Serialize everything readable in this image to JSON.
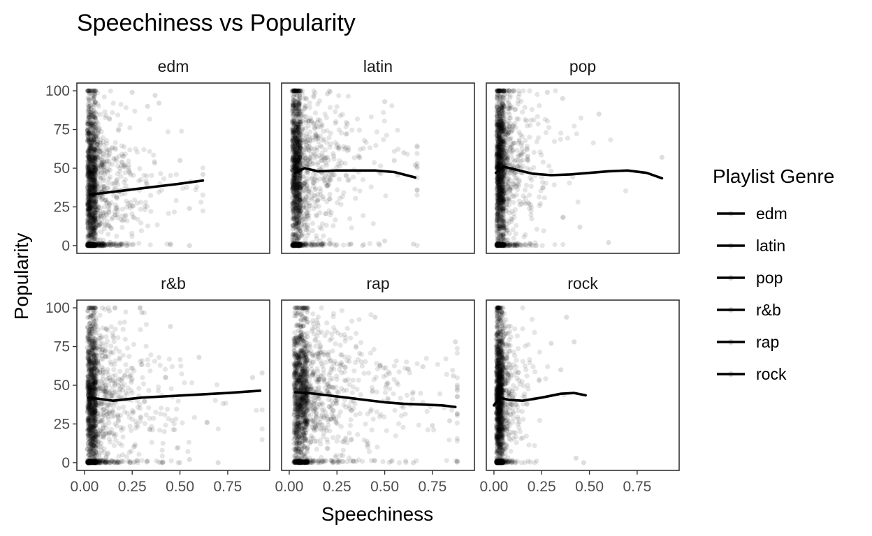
{
  "chart_data": {
    "type": "scatter",
    "title": "Speechiness vs Popularity",
    "xlabel": "Speechiness",
    "ylabel": "Popularity",
    "xlim": [
      -0.04,
      0.97
    ],
    "ylim": [
      -5,
      105
    ],
    "x_ticks": [
      0,
      0.25,
      0.5,
      0.75
    ],
    "x_tick_labels": [
      "0.00",
      "0.25",
      "0.50",
      "0.75"
    ],
    "y_ticks": [
      0,
      25,
      50,
      75,
      100
    ],
    "y_tick_labels": [
      "0",
      "25",
      "50",
      "75",
      "100"
    ],
    "grid": false,
    "point_color": "#000000",
    "point_alpha": 0.1,
    "legend": {
      "title": "Playlist Genre",
      "position": "right",
      "entries": [
        "edm",
        "latin",
        "pop",
        "r&b",
        "rap",
        "rock"
      ]
    },
    "facets": [
      {
        "name": "edm",
        "trend": {
          "x": [
            0.03,
            0.1,
            0.2,
            0.3,
            0.4,
            0.5,
            0.62
          ],
          "y": [
            33,
            34,
            35.5,
            37,
            38.5,
            40,
            42
          ]
        },
        "cloud": {
          "x_peak": 0.05,
          "x_max": 0.62,
          "concentration": 0.12,
          "y_center": 40,
          "y_spread": 28,
          "zero_fraction": 0.12
        },
        "outliers": [
          [
            0.37,
            97
          ],
          [
            0.33,
            90
          ],
          [
            0.5,
            55
          ],
          [
            0.55,
            24
          ],
          [
            0.62,
            46
          ],
          [
            0.45,
            1
          ],
          [
            0.55,
            0
          ],
          [
            0.39,
            92
          ],
          [
            0.25,
            99
          ]
        ]
      },
      {
        "name": "latin",
        "trend": {
          "x": [
            0.03,
            0.08,
            0.15,
            0.25,
            0.35,
            0.45,
            0.55,
            0.66
          ],
          "y": [
            47,
            50,
            48,
            48.5,
            48.5,
            48.5,
            47.5,
            44
          ]
        },
        "cloud": {
          "x_peak": 0.05,
          "x_max": 0.67,
          "concentration": 0.15,
          "y_center": 50,
          "y_spread": 28,
          "zero_fraction": 0.12
        },
        "outliers": [
          [
            0.5,
            93
          ],
          [
            0.66,
            52
          ],
          [
            0.55,
            55
          ],
          [
            0.6,
            60
          ],
          [
            0.5,
            3
          ],
          [
            0.65,
            1
          ],
          [
            0.2,
            98
          ],
          [
            0.05,
            99
          ]
        ]
      },
      {
        "name": "pop",
        "trend": {
          "x": [
            0.01,
            0.05,
            0.1,
            0.2,
            0.3,
            0.4,
            0.5,
            0.6,
            0.7,
            0.8,
            0.88
          ],
          "y": [
            47,
            51,
            49.5,
            46.5,
            45.5,
            46,
            47,
            48,
            48.5,
            47,
            43.5
          ]
        },
        "cloud": {
          "x_peak": 0.045,
          "x_max": 0.9,
          "concentration": 0.1,
          "y_center": 50,
          "y_spread": 28,
          "zero_fraction": 0.1
        },
        "outliers": [
          [
            0.88,
            57
          ],
          [
            0.55,
            85
          ],
          [
            0.28,
            99
          ],
          [
            0.36,
            95
          ],
          [
            0.6,
            2
          ],
          [
            0.45,
            12
          ],
          [
            0.08,
            100
          ]
        ]
      },
      {
        "name": "r&b",
        "trend": {
          "x": [
            0.02,
            0.06,
            0.15,
            0.3,
            0.45,
            0.6,
            0.75,
            0.92
          ],
          "y": [
            42,
            41.5,
            40,
            42,
            43,
            44,
            45,
            46.5
          ]
        },
        "cloud": {
          "x_peak": 0.05,
          "x_max": 0.93,
          "concentration": 0.17,
          "y_center": 42,
          "y_spread": 28,
          "zero_fraction": 0.1
        },
        "outliers": [
          [
            0.93,
            58
          ],
          [
            0.88,
            55
          ],
          [
            0.6,
            68
          ],
          [
            0.7,
            0
          ],
          [
            0.55,
            2
          ],
          [
            0.45,
            88
          ],
          [
            0.3,
            97
          ],
          [
            0.13,
            98
          ]
        ]
      },
      {
        "name": "rap",
        "trend": {
          "x": [
            0.03,
            0.1,
            0.2,
            0.3,
            0.4,
            0.5,
            0.6,
            0.7,
            0.8,
            0.87
          ],
          "y": [
            45.5,
            45,
            43.5,
            42,
            40.5,
            39,
            38,
            37.5,
            37,
            36
          ]
        },
        "cloud": {
          "x_peak": 0.08,
          "x_max": 0.88,
          "concentration": 0.28,
          "y_center": 45,
          "y_spread": 27,
          "zero_fraction": 0.1
        },
        "outliers": [
          [
            0.87,
            78
          ],
          [
            0.86,
            56
          ],
          [
            0.84,
            27
          ],
          [
            0.7,
            62
          ],
          [
            0.65,
            0
          ],
          [
            0.45,
            94
          ],
          [
            0.05,
            97
          ],
          [
            0.75,
            24
          ]
        ]
      },
      {
        "name": "rock",
        "trend": {
          "x": [
            0.0,
            0.03,
            0.08,
            0.15,
            0.25,
            0.35,
            0.42,
            0.48
          ],
          "y": [
            37,
            42,
            40.5,
            40,
            42,
            44.5,
            45,
            43.5
          ]
        },
        "cloud": {
          "x_peak": 0.04,
          "x_max": 0.5,
          "concentration": 0.055,
          "y_center": 42,
          "y_spread": 27,
          "zero_fraction": 0.08
        },
        "outliers": [
          [
            0.38,
            94
          ],
          [
            0.42,
            78
          ],
          [
            0.47,
            0
          ],
          [
            0.43,
            3
          ],
          [
            0.35,
            60
          ],
          [
            0.3,
            77
          ]
        ]
      }
    ]
  }
}
